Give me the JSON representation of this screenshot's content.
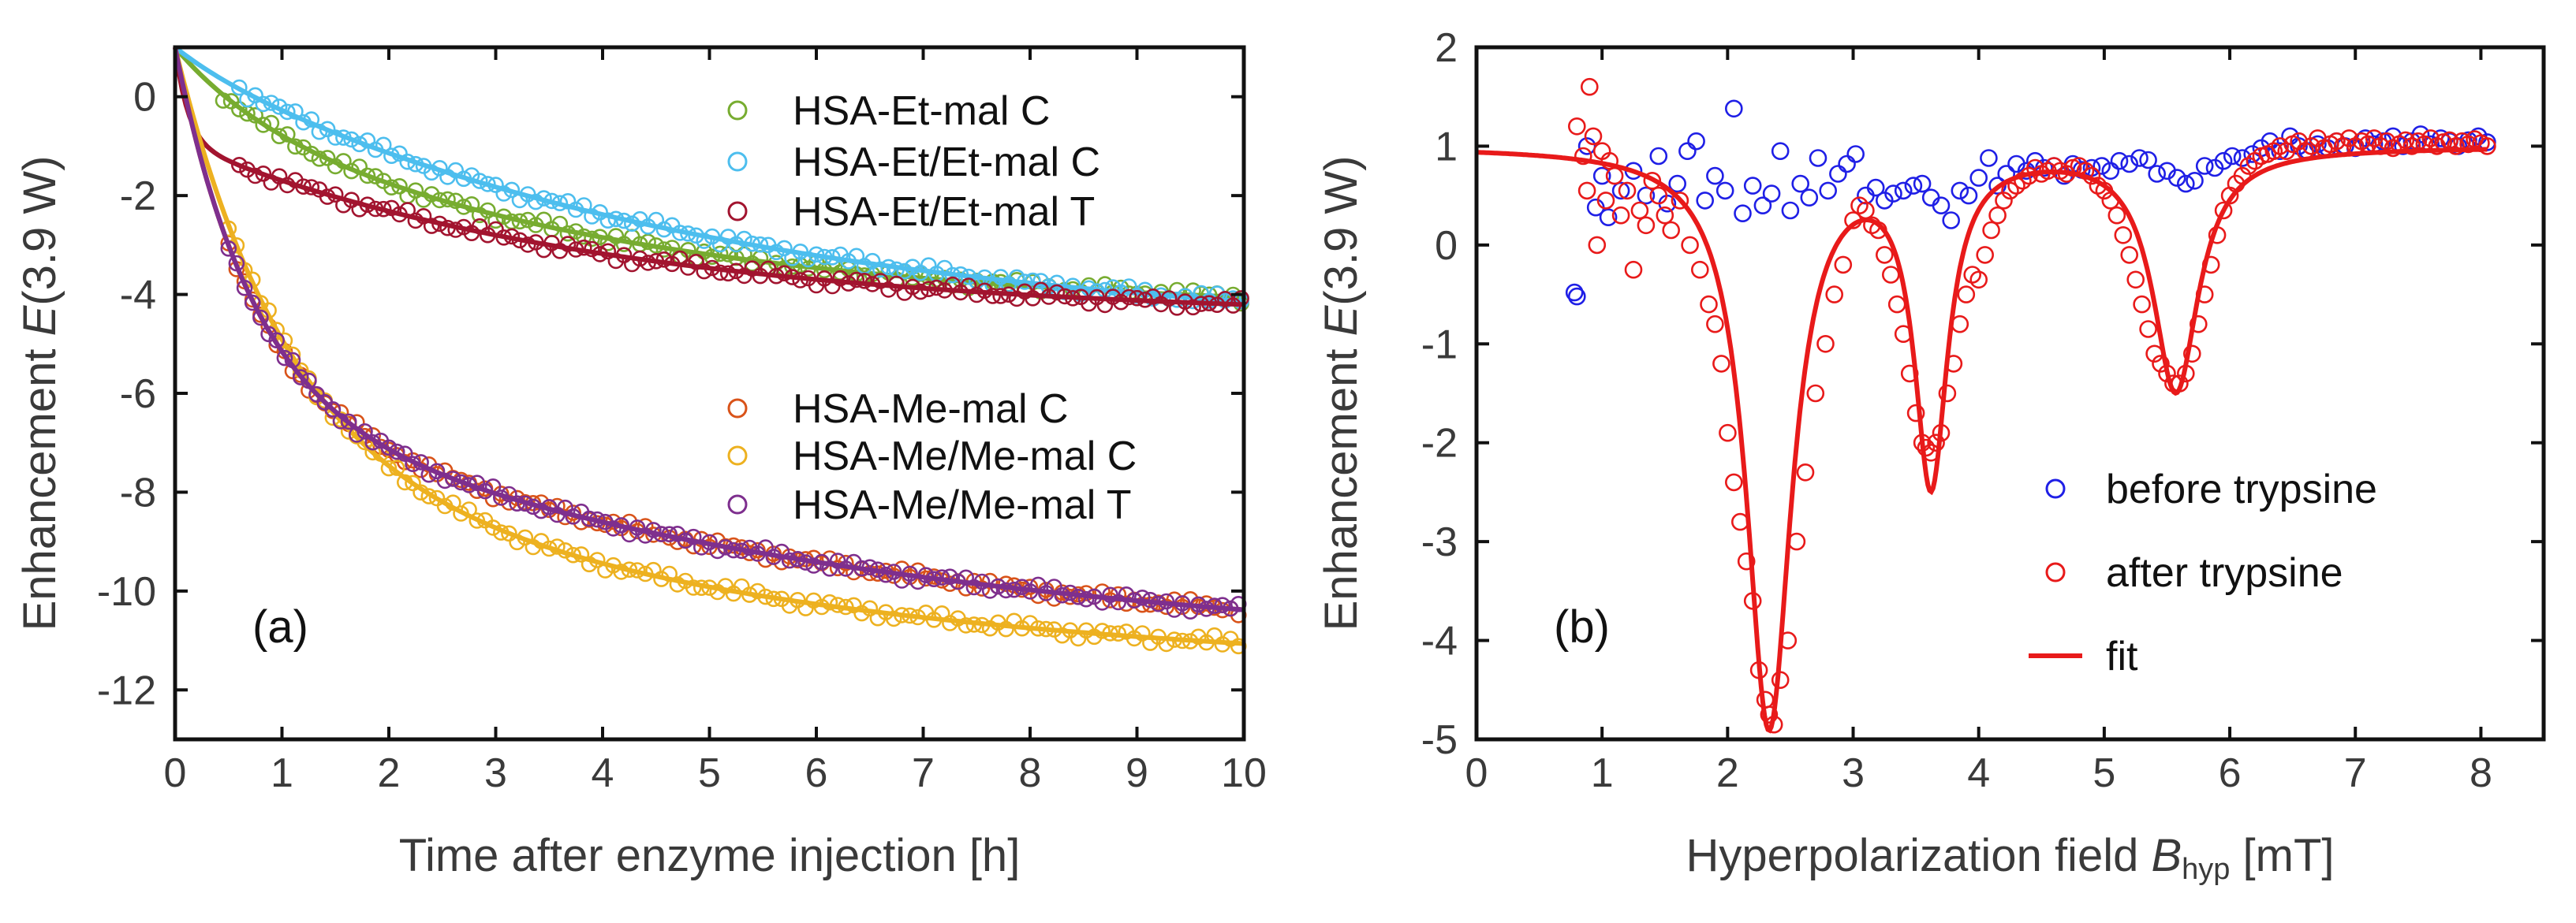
{
  "chart_data": [
    {
      "type": "scatter",
      "panel_label": "(a)",
      "xlabel": "Time after enzyme injection [h]",
      "ylabel_prefix": "Enhancement ",
      "ylabel_var": "E",
      "ylabel_suffix": "(3.9  W)",
      "xlim": [
        0,
        10
      ],
      "ylim": [
        -13,
        1
      ],
      "xticks": [
        0,
        1,
        2,
        3,
        4,
        5,
        6,
        7,
        8,
        9,
        10
      ],
      "yticks": [
        0,
        -2,
        -4,
        -6,
        -8,
        -10,
        -12
      ],
      "legend_position": "top-right and middle-right",
      "series": [
        {
          "name": "HSA-Et-mal C",
          "color": "#77ac30",
          "model": {
            "kind": "biexp",
            "x0": 0,
            "y0": 1,
            "components": [
              [
                4.2,
                4.0
              ],
              [
                1.2,
                0.8
              ]
            ]
          },
          "fit_start": 0,
          "points_start": 0.45
        },
        {
          "name": "HSA-Et/Et-mal C",
          "color": "#4dbeee",
          "model": {
            "kind": "biexp",
            "x0": 0,
            "y0": 1,
            "components": [
              [
                5.6,
                5.0
              ],
              [
                0.3,
                0.5
              ]
            ]
          },
          "fit_start": 0,
          "points_start": 0.6
        },
        {
          "name": "HSA-Et/Et-mal T",
          "color": "#a2142f",
          "model": {
            "kind": "biexp",
            "x0": 0,
            "y0": 1,
            "components": [
              [
                1.9,
                0.12
              ],
              [
                3.6,
                4.0
              ]
            ]
          },
          "fit_start": 0,
          "points_start": 0.6
        },
        {
          "name": "HSA-Me-mal C",
          "color": "#d95319",
          "model": {
            "kind": "biexp",
            "x0": 0,
            "y0": 1,
            "components": [
              [
                7.0,
                0.7
              ],
              [
                5.4,
                6.0
              ]
            ]
          },
          "fit_start": 0,
          "points_start": 0.5
        },
        {
          "name": "HSA-Me/Me-mal C",
          "color": "#edb120",
          "model": {
            "kind": "biexp",
            "x0": 0,
            "y0": 1,
            "components": [
              [
                8.0,
                1.0
              ],
              [
                4.7,
                5.0
              ]
            ]
          },
          "fit_start": 0,
          "points_start": 0.5
        },
        {
          "name": "HSA-Me/Me-mal T",
          "color": "#7e2f8e",
          "model": {
            "kind": "biexp",
            "x0": 0,
            "y0": 1,
            "components": [
              [
                7.0,
                0.7
              ],
              [
                5.4,
                6.0
              ]
            ]
          },
          "fit_start": 0,
          "points_start": 0.5
        }
      ]
    },
    {
      "type": "scatter",
      "panel_label": "(b)",
      "xlabel_prefix": "Hyperpolarization field ",
      "xlabel_var": "B",
      "xlabel_sub": "hyp",
      "xlabel_suffix": " [mT]",
      "ylabel_prefix": "Enhancement ",
      "ylabel_var": "E",
      "ylabel_suffix": "(3.9 W)",
      "xlim": [
        0,
        8.5
      ],
      "ylim": [
        -5,
        2
      ],
      "xticks": [
        0,
        1,
        2,
        3,
        4,
        5,
        6,
        7,
        8
      ],
      "yticks": [
        2,
        1,
        0,
        -1,
        -2,
        -3,
        -4,
        -5
      ],
      "legend_position": "bottom-right",
      "series": [
        {
          "name": "before trypsine",
          "color": "#1f1fe6",
          "marker": "circle",
          "x": [
            0.78,
            0.8,
            0.88,
            0.95,
            1.0,
            1.05,
            1.15,
            1.25,
            1.35,
            1.45,
            1.52,
            1.6,
            1.68,
            1.75,
            1.82,
            1.9,
            1.98,
            2.05,
            2.12,
            2.2,
            2.28,
            2.35,
            2.42,
            2.5,
            2.58,
            2.65,
            2.72,
            2.8,
            2.88,
            2.95,
            3.02,
            3.1,
            3.18,
            3.25,
            3.32,
            3.4,
            3.48,
            3.55,
            3.62,
            3.7,
            3.78,
            3.85,
            3.92,
            4.0,
            4.08,
            4.15,
            4.22,
            4.3,
            4.38,
            4.45,
            4.52,
            4.6,
            4.68,
            4.75,
            4.82,
            4.9,
            4.98,
            5.05,
            5.12,
            5.2,
            5.28,
            5.35,
            5.42,
            5.5,
            5.58,
            5.65,
            5.72,
            5.8,
            5.88,
            5.95,
            6.02,
            6.1,
            6.18,
            6.25,
            6.32,
            6.4,
            6.48,
            6.55,
            6.62,
            6.7,
            6.78,
            6.85,
            6.92,
            7.0,
            7.08,
            7.15,
            7.22,
            7.3,
            7.38,
            7.45,
            7.52,
            7.6,
            7.68,
            7.75,
            7.82,
            7.9,
            7.98,
            8.05
          ],
          "y": [
            -0.48,
            -0.52,
            1.0,
            0.38,
            0.7,
            0.28,
            0.55,
            0.75,
            0.5,
            0.9,
            0.42,
            0.62,
            0.95,
            1.05,
            0.45,
            0.7,
            0.55,
            1.38,
            0.32,
            0.6,
            0.4,
            0.52,
            0.95,
            0.35,
            0.62,
            0.48,
            0.88,
            0.55,
            0.72,
            0.82,
            0.92,
            0.5,
            0.58,
            0.45,
            0.52,
            0.55,
            0.6,
            0.62,
            0.48,
            0.4,
            0.25,
            0.55,
            0.5,
            0.68,
            0.88,
            0.6,
            0.72,
            0.82,
            0.75,
            0.85,
            0.78,
            0.8,
            0.7,
            0.82,
            0.76,
            0.78,
            0.8,
            0.75,
            0.85,
            0.82,
            0.88,
            0.86,
            0.72,
            0.75,
            0.68,
            0.62,
            0.65,
            0.8,
            0.78,
            0.85,
            0.9,
            0.88,
            0.92,
            0.98,
            1.05,
            0.95,
            1.1,
            1.0,
            0.95,
            1.02,
            0.98,
            1.05,
            1.0,
            0.98,
            1.08,
            1.02,
            1.05,
            1.1,
            1.0,
            1.05,
            1.12,
            1.02,
            1.08,
            1.05,
            1.0,
            1.06,
            1.1,
            1.04
          ]
        },
        {
          "name": "after trypsine",
          "color": "#e81a1a",
          "marker": "circle",
          "x": [
            0.8,
            0.85,
            0.88,
            0.9,
            0.93,
            0.96,
            1.0,
            1.03,
            1.06,
            1.1,
            1.15,
            1.2,
            1.25,
            1.3,
            1.35,
            1.4,
            1.45,
            1.5,
            1.55,
            1.62,
            1.7,
            1.78,
            1.85,
            1.9,
            1.95,
            2.0,
            2.05,
            2.1,
            2.15,
            2.2,
            2.25,
            2.3,
            2.33,
            2.37,
            2.42,
            2.48,
            2.55,
            2.62,
            2.7,
            2.78,
            2.85,
            2.92,
            3.0,
            3.05,
            3.1,
            3.15,
            3.2,
            3.25,
            3.3,
            3.35,
            3.4,
            3.45,
            3.5,
            3.55,
            3.58,
            3.62,
            3.66,
            3.7,
            3.75,
            3.8,
            3.85,
            3.9,
            3.95,
            4.0,
            4.05,
            4.1,
            4.15,
            4.2,
            4.25,
            4.3,
            4.35,
            4.4,
            4.45,
            4.5,
            4.55,
            4.6,
            4.65,
            4.7,
            4.75,
            4.8,
            4.85,
            4.9,
            4.95,
            5.0,
            5.05,
            5.1,
            5.15,
            5.2,
            5.25,
            5.3,
            5.35,
            5.4,
            5.45,
            5.5,
            5.55,
            5.6,
            5.65,
            5.7,
            5.75,
            5.8,
            5.85,
            5.9,
            5.95,
            6.0,
            6.05,
            6.1,
            6.15,
            6.2,
            6.25,
            6.3,
            6.35,
            6.4,
            6.45,
            6.5,
            6.55,
            6.6,
            6.65,
            6.7,
            6.75,
            6.8,
            6.85,
            6.9,
            6.95,
            7.0,
            7.05,
            7.1,
            7.15,
            7.2,
            7.25,
            7.3,
            7.35,
            7.4,
            7.45,
            7.5,
            7.55,
            7.6,
            7.65,
            7.7,
            7.75,
            7.8,
            7.85,
            7.9,
            7.95,
            8.0,
            8.05
          ],
          "y": [
            1.2,
            0.9,
            0.55,
            1.6,
            1.1,
            0.0,
            0.95,
            0.45,
            0.85,
            0.7,
            0.3,
            0.55,
            -0.25,
            0.35,
            0.2,
            0.65,
            0.5,
            0.3,
            0.15,
            0.45,
            0.0,
            -0.25,
            -0.6,
            -0.8,
            -1.2,
            -1.9,
            -2.4,
            -2.8,
            -3.2,
            -3.6,
            -4.3,
            -4.6,
            -4.75,
            -4.85,
            -4.4,
            -4.0,
            -3.0,
            -2.3,
            -1.5,
            -1.0,
            -0.5,
            -0.2,
            0.25,
            0.4,
            0.35,
            0.2,
            0.15,
            -0.1,
            -0.3,
            -0.6,
            -0.9,
            -1.3,
            -1.7,
            -2.0,
            -2.05,
            -2.1,
            -2.0,
            -1.9,
            -1.5,
            -1.2,
            -0.8,
            -0.5,
            -0.3,
            -0.35,
            -0.1,
            0.15,
            0.3,
            0.45,
            0.55,
            0.6,
            0.65,
            0.7,
            0.78,
            0.72,
            0.75,
            0.8,
            0.75,
            0.72,
            0.78,
            0.8,
            0.75,
            0.7,
            0.6,
            0.55,
            0.45,
            0.3,
            0.1,
            -0.1,
            -0.35,
            -0.6,
            -0.85,
            -1.1,
            -1.2,
            -1.3,
            -1.4,
            -1.4,
            -1.3,
            -1.1,
            -0.8,
            -0.5,
            -0.2,
            0.1,
            0.35,
            0.5,
            0.62,
            0.7,
            0.8,
            0.85,
            0.9,
            0.92,
            0.95,
            1.0,
            0.95,
            1.02,
            1.05,
            0.95,
            1.0,
            1.08,
            0.98,
            1.02,
            1.05,
            1.0,
            1.08,
            1.0,
            1.05,
            1.02,
            1.08,
            1.0,
            1.05,
            0.98,
            1.02,
            1.06,
            1.0,
            1.05,
            1.02,
            1.08,
            1.0,
            1.04,
            1.06,
            1.0,
            1.05,
            1.02,
            1.07,
            1.03,
            1.0
          ],
          "rows_hint": "noisy; the script will not invent additional points"
        },
        {
          "name": "fit",
          "color": "#e81a1a",
          "marker": "line",
          "model": {
            "kind": "lorentz_dips",
            "baseline": 1.0,
            "dips": [
              [
                2.33,
                5.85,
                0.22
              ],
              [
                3.62,
                3.3,
                0.16
              ],
              [
                5.57,
                2.45,
                0.22
              ]
            ]
          }
        }
      ]
    }
  ]
}
